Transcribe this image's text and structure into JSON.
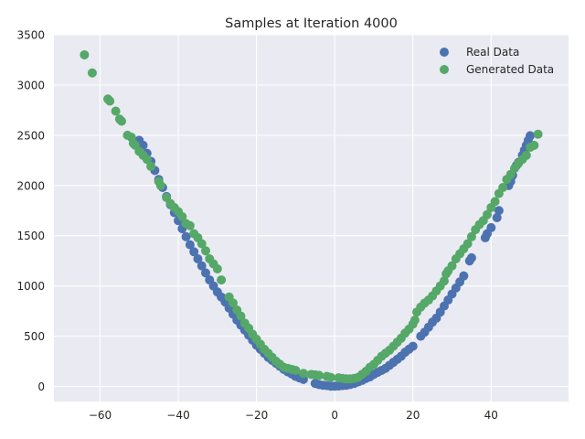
{
  "chart_data": {
    "type": "scatter",
    "title": "Samples at Iteration 4000",
    "xlabel": "",
    "ylabel": "",
    "xlim": [
      -71.8,
      59.8
    ],
    "ylim": [
      -150,
      3500
    ],
    "xticks": [
      -60,
      -40,
      -20,
      0,
      20,
      40
    ],
    "xtick_labels": [
      "−60",
      "−40",
      "−20",
      "0",
      "20",
      "40"
    ],
    "yticks": [
      0,
      500,
      1000,
      1500,
      2000,
      2500,
      3000,
      3500
    ],
    "ytick_labels": [
      "0",
      "500",
      "1000",
      "1500",
      "2000",
      "2500",
      "3000",
      "3500"
    ],
    "grid": true,
    "background": "#eaeaf2",
    "legend_position": "upper right",
    "series": [
      {
        "name": "Real Data",
        "color": "#4c72b0",
        "points": [
          [
            50,
            2495
          ],
          [
            49.5,
            2450
          ],
          [
            49,
            2400
          ],
          [
            48.5,
            2350
          ],
          [
            48,
            2300
          ],
          [
            47,
            2230
          ],
          [
            46.5,
            2200
          ],
          [
            45.5,
            2100
          ],
          [
            45,
            2040
          ],
          [
            44.5,
            2000
          ],
          [
            42,
            1750
          ],
          [
            41.5,
            1680
          ],
          [
            40,
            1580
          ],
          [
            39,
            1520
          ],
          [
            38.5,
            1480
          ],
          [
            35,
            1280
          ],
          [
            34.5,
            1250
          ],
          [
            33,
            1100
          ],
          [
            32,
            1040
          ],
          [
            31,
            980
          ],
          [
            30,
            920
          ],
          [
            29,
            860
          ],
          [
            28,
            800
          ],
          [
            27,
            740
          ],
          [
            26,
            680
          ],
          [
            25,
            640
          ],
          [
            24,
            590
          ],
          [
            23,
            540
          ],
          [
            22,
            500
          ],
          [
            20,
            400
          ],
          [
            19,
            370
          ],
          [
            18,
            340
          ],
          [
            17,
            300
          ],
          [
            16,
            270
          ],
          [
            15,
            240
          ],
          [
            14,
            210
          ],
          [
            13,
            180
          ],
          [
            12,
            160
          ],
          [
            11,
            140
          ],
          [
            10,
            120
          ],
          [
            9,
            95
          ],
          [
            8,
            80
          ],
          [
            7,
            60
          ],
          [
            6,
            45
          ],
          [
            5,
            30
          ],
          [
            4,
            20
          ],
          [
            3,
            12
          ],
          [
            2,
            8
          ],
          [
            1,
            4
          ],
          [
            0,
            2
          ],
          [
            -1,
            3
          ],
          [
            -2,
            8
          ],
          [
            -3,
            12
          ],
          [
            -4,
            18
          ],
          [
            -5,
            30
          ],
          [
            -8,
            70
          ],
          [
            -9,
            85
          ],
          [
            -10,
            100
          ],
          [
            -11,
            125
          ],
          [
            -12,
            145
          ],
          [
            -13,
            170
          ],
          [
            -14,
            200
          ],
          [
            -15,
            230
          ],
          [
            -16,
            260
          ],
          [
            -17,
            290
          ],
          [
            -18,
            330
          ],
          [
            -19,
            370
          ],
          [
            -20,
            410
          ],
          [
            -21,
            460
          ],
          [
            -22,
            510
          ],
          [
            -23,
            560
          ],
          [
            -24,
            610
          ],
          [
            -25,
            660
          ],
          [
            -26,
            720
          ],
          [
            -27,
            780
          ],
          [
            -28,
            840
          ],
          [
            -29,
            890
          ],
          [
            -30,
            940
          ],
          [
            -31,
            1000
          ],
          [
            -32,
            1060
          ],
          [
            -33,
            1130
          ],
          [
            -34,
            1200
          ],
          [
            -35,
            1270
          ],
          [
            -36,
            1340
          ],
          [
            -37,
            1410
          ],
          [
            -38,
            1490
          ],
          [
            -39,
            1570
          ],
          [
            -40,
            1650
          ],
          [
            -41,
            1730
          ],
          [
            -42,
            1810
          ],
          [
            -43,
            1890
          ],
          [
            -44,
            1980
          ],
          [
            -45,
            2060
          ],
          [
            -46,
            2150
          ],
          [
            -47,
            2240
          ],
          [
            -48,
            2320
          ],
          [
            -49,
            2400
          ],
          [
            -50,
            2450
          ]
        ]
      },
      {
        "name": "Generated Data",
        "color": "#55a868",
        "points": [
          [
            -64,
            3300
          ],
          [
            -62,
            3120
          ],
          [
            -58,
            2860
          ],
          [
            -57.5,
            2840
          ],
          [
            -56,
            2740
          ],
          [
            -55,
            2660
          ],
          [
            -54.5,
            2640
          ],
          [
            -53,
            2500
          ],
          [
            -52,
            2480
          ],
          [
            -51.5,
            2420
          ],
          [
            -51,
            2400
          ],
          [
            -50,
            2340
          ],
          [
            -49,
            2300
          ],
          [
            -48,
            2260
          ],
          [
            -47,
            2190
          ],
          [
            -45,
            2040
          ],
          [
            -44.5,
            2000
          ],
          [
            -43,
            1880
          ],
          [
            -42,
            1820
          ],
          [
            -41,
            1780
          ],
          [
            -40,
            1740
          ],
          [
            -39,
            1690
          ],
          [
            -38,
            1620
          ],
          [
            -37,
            1600
          ],
          [
            -36,
            1520
          ],
          [
            -35,
            1480
          ],
          [
            -34,
            1420
          ],
          [
            -33,
            1350
          ],
          [
            -32,
            1270
          ],
          [
            -31,
            1220
          ],
          [
            -30,
            1170
          ],
          [
            -29,
            1060
          ],
          [
            -27,
            890
          ],
          [
            -26,
            830
          ],
          [
            -25,
            760
          ],
          [
            -24,
            700
          ],
          [
            -23,
            630
          ],
          [
            -22,
            580
          ],
          [
            -21,
            520
          ],
          [
            -20,
            470
          ],
          [
            -19,
            420
          ],
          [
            -18,
            370
          ],
          [
            -17,
            330
          ],
          [
            -16,
            290
          ],
          [
            -15,
            250
          ],
          [
            -14,
            220
          ],
          [
            -13,
            190
          ],
          [
            -12,
            180
          ],
          [
            -11,
            170
          ],
          [
            -10,
            160
          ],
          [
            -8,
            130
          ],
          [
            -6,
            120
          ],
          [
            -5,
            115
          ],
          [
            -4,
            110
          ],
          [
            -2,
            100
          ],
          [
            -1,
            90
          ],
          [
            1,
            85
          ],
          [
            2,
            80
          ],
          [
            3,
            75
          ],
          [
            4,
            75
          ],
          [
            5,
            80
          ],
          [
            6,
            90
          ],
          [
            7,
            120
          ],
          [
            8,
            150
          ],
          [
            9,
            190
          ],
          [
            10,
            220
          ],
          [
            11,
            260
          ],
          [
            12,
            300
          ],
          [
            13,
            330
          ],
          [
            14,
            360
          ],
          [
            15,
            400
          ],
          [
            16,
            440
          ],
          [
            17,
            480
          ],
          [
            18,
            530
          ],
          [
            19,
            570
          ],
          [
            20,
            620
          ],
          [
            20.5,
            660
          ],
          [
            21,
            740
          ],
          [
            22,
            790
          ],
          [
            23,
            830
          ],
          [
            24,
            860
          ],
          [
            25,
            900
          ],
          [
            26,
            950
          ],
          [
            27,
            1000
          ],
          [
            28,
            1050
          ],
          [
            28.5,
            1120
          ],
          [
            29,
            1150
          ],
          [
            30,
            1200
          ],
          [
            31,
            1270
          ],
          [
            32,
            1320
          ],
          [
            33,
            1370
          ],
          [
            34,
            1420
          ],
          [
            35,
            1490
          ],
          [
            36,
            1560
          ],
          [
            37,
            1610
          ],
          [
            38,
            1650
          ],
          [
            39,
            1710
          ],
          [
            40,
            1780
          ],
          [
            41,
            1840
          ],
          [
            42,
            1920
          ],
          [
            43,
            1980
          ],
          [
            44,
            2060
          ],
          [
            45,
            2110
          ],
          [
            46,
            2170
          ],
          [
            47,
            2220
          ],
          [
            48,
            2260
          ],
          [
            49,
            2300
          ],
          [
            50,
            2380
          ],
          [
            51,
            2400
          ],
          [
            52,
            2510
          ]
        ]
      }
    ]
  }
}
